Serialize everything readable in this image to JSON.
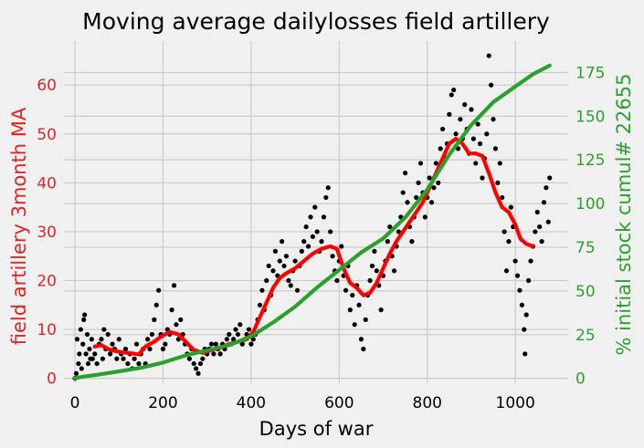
{
  "chart_data": {
    "type": "scatter",
    "title": "Moving average dailylosses field artillery",
    "xlabel": "Days of war",
    "ylabel_left": "field artillery 3month MA",
    "ylabel_right": "% initial stock cumul# 22655",
    "xlim": [
      -25,
      1120
    ],
    "ylim_left": [
      -1,
      69
    ],
    "ylim_right": [
      -2.8,
      193
    ],
    "x_ticks": [
      "0",
      "200",
      "400",
      "600",
      "800",
      "1000"
    ],
    "y_ticks_left": [
      "0",
      "10",
      "20",
      "30",
      "40",
      "50",
      "60"
    ],
    "y_ticks_right": [
      "0",
      "25",
      "50",
      "75",
      "100",
      "125",
      "150",
      "175"
    ],
    "colors": {
      "ma": "#ff0000",
      "cumul": "#2ca02c",
      "daily": "#000000",
      "left_axis": "#d62728",
      "right_axis": "#2ca02c",
      "grid": "#cbcbcb"
    },
    "grid": true,
    "series": [
      {
        "role": "daily losses (scatter, left axis)",
        "color": "#000000",
        "points": [
          [
            0,
            0
          ],
          [
            3,
            1
          ],
          [
            5,
            8
          ],
          [
            8,
            3
          ],
          [
            10,
            5
          ],
          [
            13,
            10
          ],
          [
            15,
            2
          ],
          [
            18,
            7
          ],
          [
            20,
            12
          ],
          [
            22,
            13
          ],
          [
            25,
            5
          ],
          [
            28,
            9
          ],
          [
            30,
            3
          ],
          [
            33,
            6
          ],
          [
            35,
            4
          ],
          [
            38,
            8
          ],
          [
            40,
            4
          ],
          [
            45,
            5
          ],
          [
            50,
            3
          ],
          [
            55,
            7
          ],
          [
            60,
            8
          ],
          [
            63,
            4
          ],
          [
            66,
            10
          ],
          [
            70,
            6
          ],
          [
            75,
            9
          ],
          [
            80,
            5
          ],
          [
            85,
            7
          ],
          [
            90,
            6
          ],
          [
            95,
            4
          ],
          [
            100,
            8
          ],
          [
            105,
            5
          ],
          [
            110,
            4
          ],
          [
            115,
            6
          ],
          [
            120,
            3
          ],
          [
            125,
            5
          ],
          [
            130,
            2
          ],
          [
            135,
            4
          ],
          [
            140,
            7
          ],
          [
            145,
            3
          ],
          [
            150,
            5
          ],
          [
            155,
            6
          ],
          [
            160,
            3
          ],
          [
            165,
            8
          ],
          [
            170,
            6
          ],
          [
            175,
            9
          ],
          [
            180,
            12
          ],
          [
            185,
            15
          ],
          [
            190,
            18
          ],
          [
            195,
            9
          ],
          [
            200,
            6
          ],
          [
            205,
            7
          ],
          [
            210,
            10
          ],
          [
            215,
            9
          ],
          [
            220,
            14
          ],
          [
            225,
            19
          ],
          [
            230,
            11
          ],
          [
            235,
            8
          ],
          [
            240,
            12
          ],
          [
            245,
            9
          ],
          [
            250,
            7
          ],
          [
            255,
            5
          ],
          [
            260,
            4
          ],
          [
            265,
            6
          ],
          [
            270,
            3
          ],
          [
            275,
            2
          ],
          [
            280,
            1
          ],
          [
            285,
            3
          ],
          [
            290,
            4
          ],
          [
            295,
            6
          ],
          [
            300,
            5
          ],
          [
            305,
            6
          ],
          [
            310,
            7
          ],
          [
            315,
            5
          ],
          [
            320,
            7
          ],
          [
            325,
            6
          ],
          [
            330,
            5
          ],
          [
            335,
            7
          ],
          [
            340,
            6
          ],
          [
            345,
            8
          ],
          [
            350,
            9
          ],
          [
            355,
            7
          ],
          [
            360,
            8
          ],
          [
            365,
            10
          ],
          [
            370,
            9
          ],
          [
            375,
            11
          ],
          [
            380,
            7
          ],
          [
            385,
            8
          ],
          [
            390,
            9
          ],
          [
            395,
            10
          ],
          [
            400,
            7
          ],
          [
            405,
            8
          ],
          [
            410,
            9
          ],
          [
            415,
            12
          ],
          [
            420,
            15
          ],
          [
            425,
            18
          ],
          [
            430,
            14
          ],
          [
            435,
            20
          ],
          [
            440,
            23
          ],
          [
            445,
            17
          ],
          [
            450,
            22
          ],
          [
            455,
            26
          ],
          [
            460,
            21
          ],
          [
            465,
            24
          ],
          [
            470,
            28
          ],
          [
            475,
            23
          ],
          [
            480,
            25
          ],
          [
            485,
            20
          ],
          [
            490,
            19
          ],
          [
            495,
            22
          ],
          [
            500,
            24
          ],
          [
            505,
            18
          ],
          [
            510,
            23
          ],
          [
            515,
            26
          ],
          [
            520,
            28
          ],
          [
            525,
            31
          ],
          [
            530,
            27
          ],
          [
            535,
            33
          ],
          [
            540,
            29
          ],
          [
            545,
            35
          ],
          [
            550,
            30
          ],
          [
            555,
            26
          ],
          [
            560,
            28
          ],
          [
            565,
            33
          ],
          [
            570,
            37
          ],
          [
            575,
            39
          ],
          [
            580,
            30
          ],
          [
            585,
            25
          ],
          [
            590,
            22
          ],
          [
            595,
            20
          ],
          [
            600,
            24
          ],
          [
            605,
            27
          ],
          [
            610,
            21
          ],
          [
            615,
            18
          ],
          [
            620,
            23
          ],
          [
            625,
            14
          ],
          [
            630,
            17
          ],
          [
            635,
            11
          ],
          [
            640,
            19
          ],
          [
            645,
            15
          ],
          [
            650,
            8
          ],
          [
            655,
            6
          ],
          [
            660,
            12
          ],
          [
            665,
            17
          ],
          [
            670,
            20
          ],
          [
            675,
            23
          ],
          [
            680,
            26
          ],
          [
            685,
            22
          ],
          [
            690,
            19
          ],
          [
            695,
            14
          ],
          [
            700,
            21
          ],
          [
            705,
            24
          ],
          [
            710,
            28
          ],
          [
            715,
            31
          ],
          [
            720,
            25
          ],
          [
            725,
            22
          ],
          [
            730,
            27
          ],
          [
            735,
            30
          ],
          [
            740,
            33
          ],
          [
            745,
            38
          ],
          [
            750,
            42
          ],
          [
            755,
            36
          ],
          [
            760,
            31
          ],
          [
            765,
            28
          ],
          [
            770,
            33
          ],
          [
            775,
            37
          ],
          [
            780,
            40
          ],
          [
            785,
            44
          ],
          [
            790,
            38
          ],
          [
            795,
            33
          ],
          [
            800,
            37
          ],
          [
            805,
            41
          ],
          [
            810,
            36
          ],
          [
            815,
            39
          ],
          [
            820,
            44
          ],
          [
            825,
            40
          ],
          [
            830,
            47
          ],
          [
            835,
            51
          ],
          [
            840,
            45
          ],
          [
            845,
            48
          ],
          [
            850,
            54
          ],
          [
            855,
            58
          ],
          [
            860,
            59
          ],
          [
            865,
            50
          ],
          [
            870,
            47
          ],
          [
            875,
            53
          ],
          [
            880,
            49
          ],
          [
            885,
            56
          ],
          [
            890,
            51
          ],
          [
            895,
            46
          ],
          [
            900,
            55
          ],
          [
            905,
            49
          ],
          [
            910,
            44
          ],
          [
            915,
            52
          ],
          [
            920,
            48
          ],
          [
            925,
            41
          ],
          [
            930,
            45
          ],
          [
            935,
            50
          ],
          [
            940,
            66
          ],
          [
            945,
            60
          ],
          [
            950,
            53
          ],
          [
            955,
            47
          ],
          [
            960,
            40
          ],
          [
            965,
            44
          ],
          [
            970,
            37
          ],
          [
            975,
            30
          ],
          [
            980,
            22
          ],
          [
            985,
            28
          ],
          [
            990,
            35
          ],
          [
            995,
            31
          ],
          [
            1000,
            24
          ],
          [
            1005,
            21
          ],
          [
            1010,
            18
          ],
          [
            1015,
            15
          ],
          [
            1020,
            10
          ],
          [
            1022,
            5
          ],
          [
            1025,
            13
          ],
          [
            1030,
            20
          ],
          [
            1035,
            24
          ],
          [
            1040,
            27
          ],
          [
            1045,
            30
          ],
          [
            1050,
            34
          ],
          [
            1055,
            31
          ],
          [
            1060,
            28
          ],
          [
            1065,
            36
          ],
          [
            1070,
            39
          ],
          [
            1075,
            32
          ],
          [
            1078,
            41
          ]
        ]
      },
      {
        "role": "3 month moving average (line, left axis)",
        "color": "#ff0000",
        "points": [
          [
            45,
            6.5
          ],
          [
            60,
            6.8
          ],
          [
            75,
            6.0
          ],
          [
            90,
            5.6
          ],
          [
            110,
            5.3
          ],
          [
            130,
            5.1
          ],
          [
            145,
            4.9
          ],
          [
            160,
            6.5
          ],
          [
            180,
            7.5
          ],
          [
            195,
            8.5
          ],
          [
            215,
            9.5
          ],
          [
            235,
            9.0
          ],
          [
            255,
            7.2
          ],
          [
            270,
            5.8
          ],
          [
            290,
            5.2
          ],
          [
            310,
            5.8
          ],
          [
            330,
            6.3
          ],
          [
            350,
            7.0
          ],
          [
            370,
            7.5
          ],
          [
            390,
            8.0
          ],
          [
            405,
            9.5
          ],
          [
            420,
            12.5
          ],
          [
            435,
            15.5
          ],
          [
            450,
            18.5
          ],
          [
            465,
            20.5
          ],
          [
            480,
            21.5
          ],
          [
            500,
            22.5
          ],
          [
            520,
            24.0
          ],
          [
            540,
            25.5
          ],
          [
            560,
            26.5
          ],
          [
            580,
            27.0
          ],
          [
            595,
            26.5
          ],
          [
            610,
            22.5
          ],
          [
            625,
            19.5
          ],
          [
            640,
            18.5
          ],
          [
            655,
            17.0
          ],
          [
            670,
            17.5
          ],
          [
            685,
            19.5
          ],
          [
            700,
            22.5
          ],
          [
            715,
            25.5
          ],
          [
            730,
            28.0
          ],
          [
            745,
            30.0
          ],
          [
            760,
            32.0
          ],
          [
            775,
            34.0
          ],
          [
            790,
            36.0
          ],
          [
            805,
            39.0
          ],
          [
            820,
            42.0
          ],
          [
            835,
            45.0
          ],
          [
            850,
            48.0
          ],
          [
            865,
            49.0
          ],
          [
            880,
            48.0
          ],
          [
            895,
            46.0
          ],
          [
            910,
            46.0
          ],
          [
            925,
            45.5
          ],
          [
            940,
            42.0
          ],
          [
            955,
            38.0
          ],
          [
            970,
            35.0
          ],
          [
            985,
            34.0
          ],
          [
            1000,
            31.5
          ],
          [
            1012,
            28.5
          ],
          [
            1025,
            27.5
          ],
          [
            1040,
            27.0
          ]
        ]
      },
      {
        "role": "cumulative % of initial stock (line, right axis)",
        "color": "#2ca02c",
        "points": [
          [
            0,
            0
          ],
          [
            20,
            1
          ],
          [
            50,
            2
          ],
          [
            100,
            4
          ],
          [
            150,
            6
          ],
          [
            200,
            9
          ],
          [
            250,
            13
          ],
          [
            300,
            16
          ],
          [
            350,
            19
          ],
          [
            400,
            24
          ],
          [
            450,
            32
          ],
          [
            500,
            41
          ],
          [
            550,
            52
          ],
          [
            600,
            62
          ],
          [
            650,
            72
          ],
          [
            700,
            80
          ],
          [
            750,
            92
          ],
          [
            800,
            108
          ],
          [
            850,
            128
          ],
          [
            900,
            145
          ],
          [
            950,
            158
          ],
          [
            1000,
            167
          ],
          [
            1040,
            174
          ],
          [
            1078,
            179
          ]
        ]
      }
    ]
  }
}
